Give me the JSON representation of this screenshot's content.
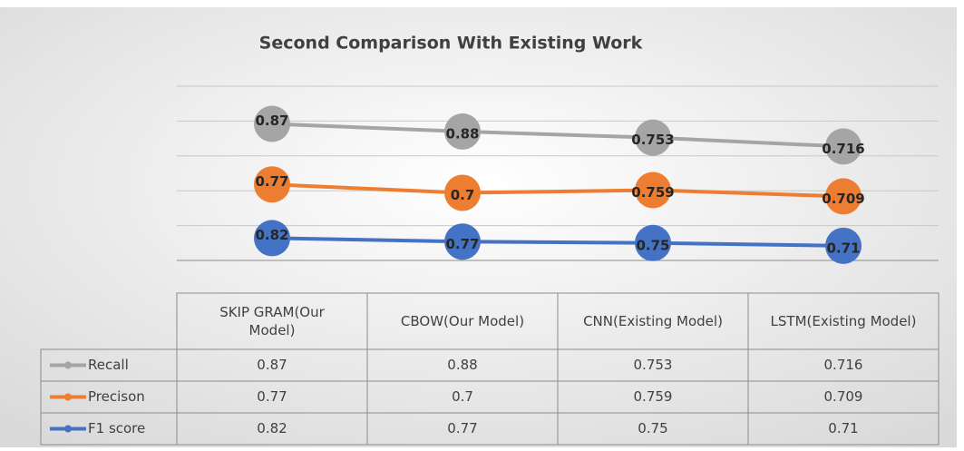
{
  "chart_data": {
    "type": "line",
    "stacked": true,
    "title": "Second Comparison With Existing Work",
    "categories": [
      "SKIP GRAM(Our Model)",
      "CBOW(Our Model)",
      "CNN(Existing Model)",
      "LSTM(Existing Model)"
    ],
    "series": [
      {
        "name": "Recall",
        "color": "#a5a5a5",
        "values": [
          0.87,
          0.88,
          0.753,
          0.716
        ]
      },
      {
        "name": "Precison",
        "color": "#ed7d31",
        "values": [
          0.77,
          0.7,
          0.759,
          0.709
        ]
      },
      {
        "name": "F1 score",
        "color": "#4472c4",
        "values": [
          0.82,
          0.77,
          0.75,
          0.71
        ]
      }
    ],
    "ylim": [
      0.5,
      3.0
    ],
    "yticks": [
      0.5,
      1.0,
      1.5,
      2.0,
      2.5,
      3.0
    ],
    "grid": true,
    "data_table": true
  }
}
